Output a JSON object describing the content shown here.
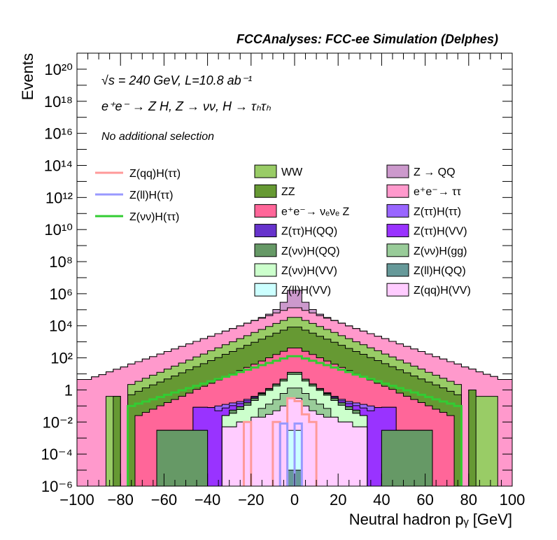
{
  "chart_data": {
    "type": "bar",
    "subtype": "stacked-histogram-log",
    "title": "FCCAnalyses: FCC-ee Simulation (Delphes)",
    "xlabel": "Neutral hadron pᵧ [GeV]",
    "ylabel": "Events",
    "annotations": [
      "√s = 240 GeV, L=10.8 ab⁻¹",
      "e⁺e⁻ → Z H, Z → νν, H → τₕτₕ",
      "No additional selection"
    ],
    "xlim": [
      -100,
      100
    ],
    "nbins": 60,
    "yscale": "log",
    "ylim": [
      1e-06,
      1e+21
    ],
    "xticks": [
      -100,
      -80,
      -60,
      -40,
      -20,
      0,
      20,
      40,
      60,
      80,
      100
    ],
    "xtick_labels": [
      "−100",
      "−80",
      "−60",
      "−40",
      "−20",
      "0",
      "20",
      "40",
      "60",
      "80",
      "100"
    ],
    "yticks": [
      1e-06,
      0.0001,
      0.01,
      1,
      100.0,
      10000.0,
      1000000.0,
      100000000.0,
      10000000000.0,
      1000000000000.0,
      100000000000000.0,
      1e+16,
      1e+18,
      1e+20
    ],
    "ytick_labels": [
      "10⁻⁶",
      "10⁻⁴",
      "10⁻²",
      "1",
      "10²",
      "10⁴",
      "10⁶",
      "10⁸",
      "10¹⁰",
      "10¹²",
      "10¹⁴",
      "10¹⁶",
      "10¹⁸",
      "10²⁰"
    ],
    "legend_placement": "top",
    "series": [
      {
        "name": "Z(ll)H(QQ)",
        "color": "#669999",
        "values": [
          0,
          0,
          0,
          0,
          0,
          0,
          0,
          0,
          0,
          0,
          0,
          0,
          0,
          0,
          0,
          0,
          0,
          0,
          0,
          0,
          0,
          0,
          0,
          0,
          0,
          0,
          0,
          0,
          0,
          1e-05,
          1e-05,
          0,
          0,
          0,
          0,
          0,
          0,
          0,
          0,
          0,
          0,
          0,
          0,
          0,
          0,
          0,
          0,
          0,
          0,
          0,
          0,
          0,
          0,
          0,
          0,
          0,
          0,
          0,
          0,
          0
        ]
      },
      {
        "name": "Z(ll)H(VV)",
        "color": "#ccffff",
        "values": [
          0,
          0,
          0,
          0,
          0,
          0,
          0,
          0,
          0,
          0,
          0,
          0,
          0,
          0,
          0,
          0,
          0,
          0,
          0,
          0,
          0,
          0,
          0,
          0,
          0,
          0,
          0,
          0,
          0,
          0.003,
          0.003,
          0,
          0,
          0,
          0,
          0,
          0,
          0,
          0,
          0,
          0,
          0,
          0,
          0,
          0,
          0,
          0,
          0,
          0,
          0,
          0,
          0,
          0,
          0,
          0,
          0,
          0,
          0,
          0,
          0
        ]
      },
      {
        "name": "Z(qq)H(VV)",
        "color": "#ffccff",
        "values": [
          0,
          0,
          0,
          0,
          0,
          0,
          0,
          0,
          0,
          0,
          0,
          0,
          0,
          0,
          0,
          0,
          0,
          0,
          0,
          0,
          0.005,
          0.005,
          0.01,
          0.01,
          0.02,
          0.02,
          0.03,
          0.05,
          0.1,
          0.3,
          0.3,
          0.1,
          0.05,
          0.03,
          0.02,
          0.02,
          0.01,
          0.01,
          0.005,
          0.005,
          0,
          0,
          0,
          0,
          0,
          0,
          0,
          0,
          0,
          0,
          0,
          0,
          0,
          0,
          0,
          0,
          0,
          0,
          0,
          0
        ]
      },
      {
        "name": "Z(νν)H(gg)",
        "color": "#99cc99",
        "values": [
          0,
          0,
          0,
          0,
          0,
          0,
          0,
          0,
          0,
          0,
          0,
          0,
          0,
          0,
          0,
          0,
          0,
          0,
          0,
          0,
          0,
          0,
          0,
          0,
          0,
          0.05,
          0.1,
          0.2,
          0.5,
          1,
          1,
          0.5,
          0.2,
          0.1,
          0.05,
          0,
          0,
          0,
          0,
          0,
          0,
          0,
          0,
          0,
          0,
          0,
          0,
          0,
          0,
          0,
          0,
          0,
          0,
          0,
          0,
          0,
          0,
          0,
          0,
          0
        ]
      },
      {
        "name": "Z(νν)H(VV)",
        "color": "#ccffcc",
        "values": [
          0,
          0,
          0,
          0,
          0,
          0,
          0,
          0,
          0,
          0,
          0,
          0,
          0,
          0,
          0,
          0,
          0,
          0,
          0,
          0,
          0.02,
          0.03,
          0.05,
          0.1,
          0.2,
          0.4,
          0.8,
          1.5,
          3,
          8,
          8,
          3,
          1.5,
          0.8,
          0.4,
          0.2,
          0.1,
          0.05,
          0.03,
          0.02,
          0,
          0,
          0,
          0,
          0,
          0,
          0,
          0,
          0,
          0,
          0,
          0,
          0,
          0,
          0,
          0,
          0,
          0,
          0,
          0
        ]
      },
      {
        "name": "Z(νν)H(QQ)",
        "color": "#669966",
        "values": [
          0,
          0,
          0,
          0,
          0,
          0,
          0,
          0,
          0,
          0,
          0,
          0.003,
          0.003,
          0.003,
          0.003,
          0.003,
          0.003,
          0.003,
          0,
          0,
          0,
          0.02,
          0.03,
          0.05,
          0.08,
          0.1,
          0.2,
          0.5,
          1,
          3,
          3,
          1,
          0.5,
          0.2,
          0.1,
          0.08,
          0.05,
          0.03,
          0.02,
          0,
          0,
          0,
          0.003,
          0.003,
          0.003,
          0.003,
          0.003,
          0.003,
          0.003,
          0,
          0,
          0,
          0,
          0,
          0,
          0,
          0,
          0,
          0,
          0
        ]
      },
      {
        "name": "Z(ττ)H(QQ)",
        "color": "#6633cc",
        "values": [
          0,
          0,
          0,
          0,
          0,
          0,
          0,
          0,
          0,
          0,
          0,
          0,
          0,
          0,
          0,
          0,
          0,
          0,
          0,
          0,
          0,
          0,
          0,
          0,
          0,
          0.0001,
          0.0001,
          0,
          0,
          0.001,
          0.001,
          0,
          0,
          0.0001,
          0.0001,
          0,
          0,
          0,
          0,
          0,
          0,
          0,
          0,
          0,
          0,
          0,
          0,
          0,
          0,
          0,
          0,
          0,
          0,
          0,
          0,
          0,
          0,
          0,
          0,
          0
        ]
      },
      {
        "name": "Z(ττ)H(VV)",
        "color": "#9933ff",
        "values": [
          0,
          0,
          0,
          0,
          0,
          0,
          0,
          0,
          0,
          0,
          0,
          0,
          0,
          0,
          0,
          0,
          0.08,
          0.08,
          0.08,
          0.05,
          0.05,
          0.05,
          0.05,
          0.05,
          0.05,
          0.05,
          0.05,
          0.05,
          0.05,
          0.05,
          0.05,
          0.05,
          0.05,
          0.05,
          0.05,
          0.05,
          0.05,
          0.05,
          0.05,
          0.05,
          0.05,
          0.08,
          0.08,
          0.08,
          0,
          0,
          0,
          0,
          0,
          0,
          0,
          0,
          0,
          0,
          0,
          0,
          0,
          0,
          0,
          0
        ]
      },
      {
        "name": "Z(ττ)H(ττ)",
        "color": "#9966ff",
        "values": [
          0,
          0,
          0,
          0,
          0,
          0,
          0,
          0,
          0,
          0,
          0,
          0,
          0,
          0,
          0,
          0,
          0,
          0,
          0,
          0.05,
          0.05,
          0.05,
          0.05,
          0.05,
          0.05,
          0.05,
          0.05,
          0.05,
          0.05,
          0.05,
          0.05,
          0.05,
          0.05,
          0.05,
          0.05,
          0.05,
          0.05,
          0.05,
          0.05,
          0.05,
          0.05,
          0,
          0,
          0,
          0,
          0,
          0,
          0,
          0,
          0,
          0,
          0,
          0,
          0,
          0,
          0,
          0,
          0,
          0,
          0
        ]
      },
      {
        "name": "e⁺e⁻→ νₑνₑ Z",
        "color": "#ff6699",
        "values": [
          0,
          0,
          0,
          0,
          0,
          0,
          0,
          0,
          0.025,
          0.04,
          0.063,
          0.1,
          0.16,
          0.25,
          0.4,
          0.63,
          1,
          1.6,
          2.5,
          4,
          6.3,
          10,
          16,
          25,
          40,
          63,
          100,
          160,
          250,
          400,
          400,
          250,
          160,
          100,
          63,
          40,
          25,
          16,
          10,
          6.3,
          4,
          2.5,
          1.6,
          1,
          0.63,
          0.4,
          0.25,
          0.16,
          0.1,
          0.063,
          0.04,
          0.025,
          0,
          0,
          0,
          0,
          0,
          0,
          0,
          0
        ]
      },
      {
        "name": "ZZ",
        "color": "#669933",
        "values": [
          0,
          0,
          0,
          0,
          0,
          0.4,
          0,
          0.5,
          0.8,
          1.3,
          2,
          3,
          4.7,
          7.2,
          11.2,
          17.5,
          27,
          42,
          65,
          100,
          160,
          240,
          370,
          580,
          900,
          1400,
          2100,
          3300,
          5100,
          7900,
          7900,
          5100,
          3300,
          2100,
          1400,
          900,
          580,
          370,
          240,
          160,
          100,
          65,
          42,
          27,
          17.5,
          11.2,
          7.2,
          4.7,
          3,
          2,
          1.3,
          0.8,
          0.5,
          0,
          1.0,
          0,
          0,
          0,
          0,
          0
        ]
      },
      {
        "name": "WW",
        "color": "#99cc66",
        "values": [
          0,
          0,
          0,
          0,
          0.4,
          0,
          0,
          1.7,
          2.6,
          4,
          6.2,
          9.5,
          15,
          23,
          36,
          55,
          87,
          130,
          210,
          320,
          500,
          760,
          1200,
          1800,
          2900,
          4400,
          6800,
          10500,
          16000,
          25000,
          25000,
          16000,
          10500,
          6800,
          4400,
          2900,
          1800,
          1200,
          760,
          500,
          320,
          210,
          130,
          87,
          55,
          36,
          23,
          15,
          9.5,
          6.2,
          4,
          2.6,
          1.7,
          0,
          0,
          0.4,
          0.4,
          0.4,
          0,
          0
        ]
      },
      {
        "name": "e⁺e⁻→ ττ",
        "color": "#ff99cc",
        "values": [
          4.5,
          4.5,
          6.5,
          9,
          13,
          19,
          27,
          39,
          55,
          79,
          110,
          160,
          230,
          330,
          470,
          670,
          950,
          1400,
          1950,
          2800,
          4000,
          5700,
          8200,
          12000,
          17000,
          24000,
          34000,
          49000,
          70000,
          100000,
          100000,
          70000,
          49000,
          34000,
          24000,
          17000,
          12000,
          8200,
          5700,
          4000,
          2800,
          1950,
          1400,
          950,
          670,
          470,
          330,
          230,
          160,
          110,
          79,
          55,
          39,
          27,
          19,
          13,
          9,
          6.5,
          4.5,
          4.5
        ]
      },
      {
        "name": "Z → QQ",
        "color": "#cc99cc",
        "values": [
          0,
          0,
          0,
          0,
          0,
          0,
          0,
          0,
          0,
          0,
          0,
          0,
          0,
          0,
          0,
          0,
          0,
          0,
          0,
          8,
          20,
          50,
          150,
          400,
          1000,
          3000,
          10000,
          40000,
          200000,
          1500000,
          1500000,
          200000,
          40000,
          10000,
          3000,
          1000,
          400,
          150,
          50,
          20,
          8,
          0,
          0,
          0,
          0,
          0,
          0,
          0,
          0,
          0,
          0,
          0,
          0,
          0,
          0,
          0,
          0,
          0,
          0,
          0
        ]
      }
    ],
    "lines": [
      {
        "name": "Z(qq)H(ττ)",
        "color": "#ff9999",
        "values": [
          0,
          0,
          0,
          0,
          0,
          0,
          0,
          0,
          0,
          0,
          0,
          0,
          0,
          0,
          0,
          0,
          0,
          0,
          0,
          0,
          0,
          0,
          0,
          0.01,
          0,
          0,
          0,
          0.01,
          0,
          0.3,
          0.2,
          0.03,
          0.01,
          0,
          0,
          0,
          0,
          0,
          0,
          0,
          0,
          0,
          0,
          0,
          0,
          0,
          0,
          0,
          0,
          0,
          0,
          0,
          0,
          0,
          0,
          0,
          0,
          0,
          0,
          0
        ]
      },
      {
        "name": "Z(ll)H(ττ)",
        "color": "#9999ff",
        "values": [
          0,
          0,
          0,
          0,
          0,
          0,
          0,
          0,
          0,
          0,
          0,
          0,
          0,
          0,
          0,
          0,
          0,
          0,
          0,
          0,
          0,
          0,
          0,
          0,
          0,
          0,
          0,
          0,
          0.008,
          0,
          0.008,
          0,
          0,
          0,
          0,
          0,
          0,
          0,
          0,
          0,
          0,
          0,
          0,
          0,
          0,
          0,
          0,
          0,
          0,
          0,
          0,
          0,
          0,
          0,
          0,
          0,
          0,
          0,
          0,
          0
        ]
      },
      {
        "name": "Z(νν)H(ττ)",
        "color": "#33cc33",
        "values": [
          0,
          0,
          0,
          0,
          0,
          0,
          0,
          0.1,
          0.14,
          0.19,
          0.26,
          0.36,
          0.5,
          0.69,
          0.95,
          1.3,
          1.8,
          2.5,
          3.5,
          4.8,
          6.6,
          9.1,
          13,
          18,
          25,
          35,
          48,
          66,
          91,
          126,
          126,
          91,
          66,
          48,
          35,
          25,
          18,
          13,
          9.1,
          6.6,
          4.8,
          3.5,
          2.5,
          1.8,
          1.3,
          0.95,
          0.69,
          0.5,
          0.36,
          0.26,
          0.19,
          0.14,
          0.1,
          0,
          0,
          0,
          0,
          0,
          0,
          0
        ]
      }
    ]
  }
}
